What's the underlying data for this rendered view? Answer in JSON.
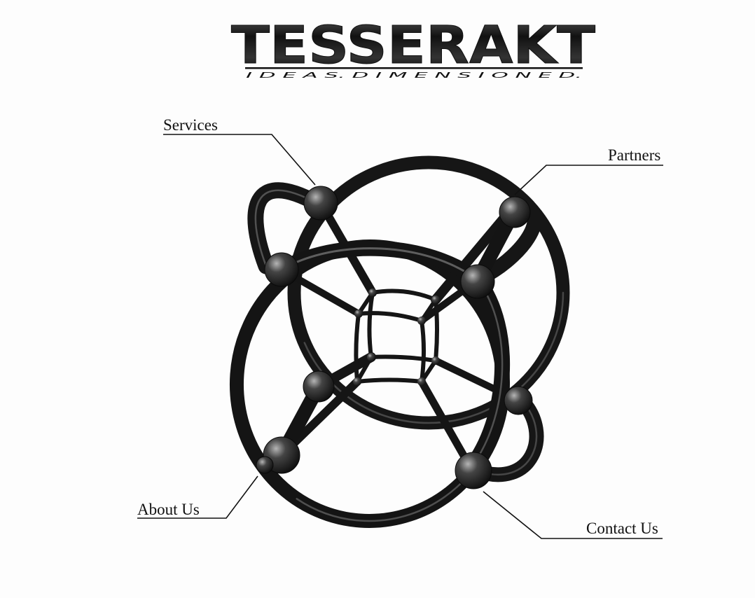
{
  "brand": {
    "title": "TESSERAKT",
    "tagline": "I D E A S. D I M E N S I O N E D."
  },
  "nav": {
    "services": "Services",
    "partners": "Partners",
    "about": "About Us",
    "contact": "Contact Us"
  },
  "colors": {
    "background": "#fdfdfd",
    "ink": "#111111",
    "tube": "#1a1a1a",
    "highlight": "#9a9a9a"
  },
  "illustration": {
    "icon": "tesseract-hypercube-icon"
  }
}
